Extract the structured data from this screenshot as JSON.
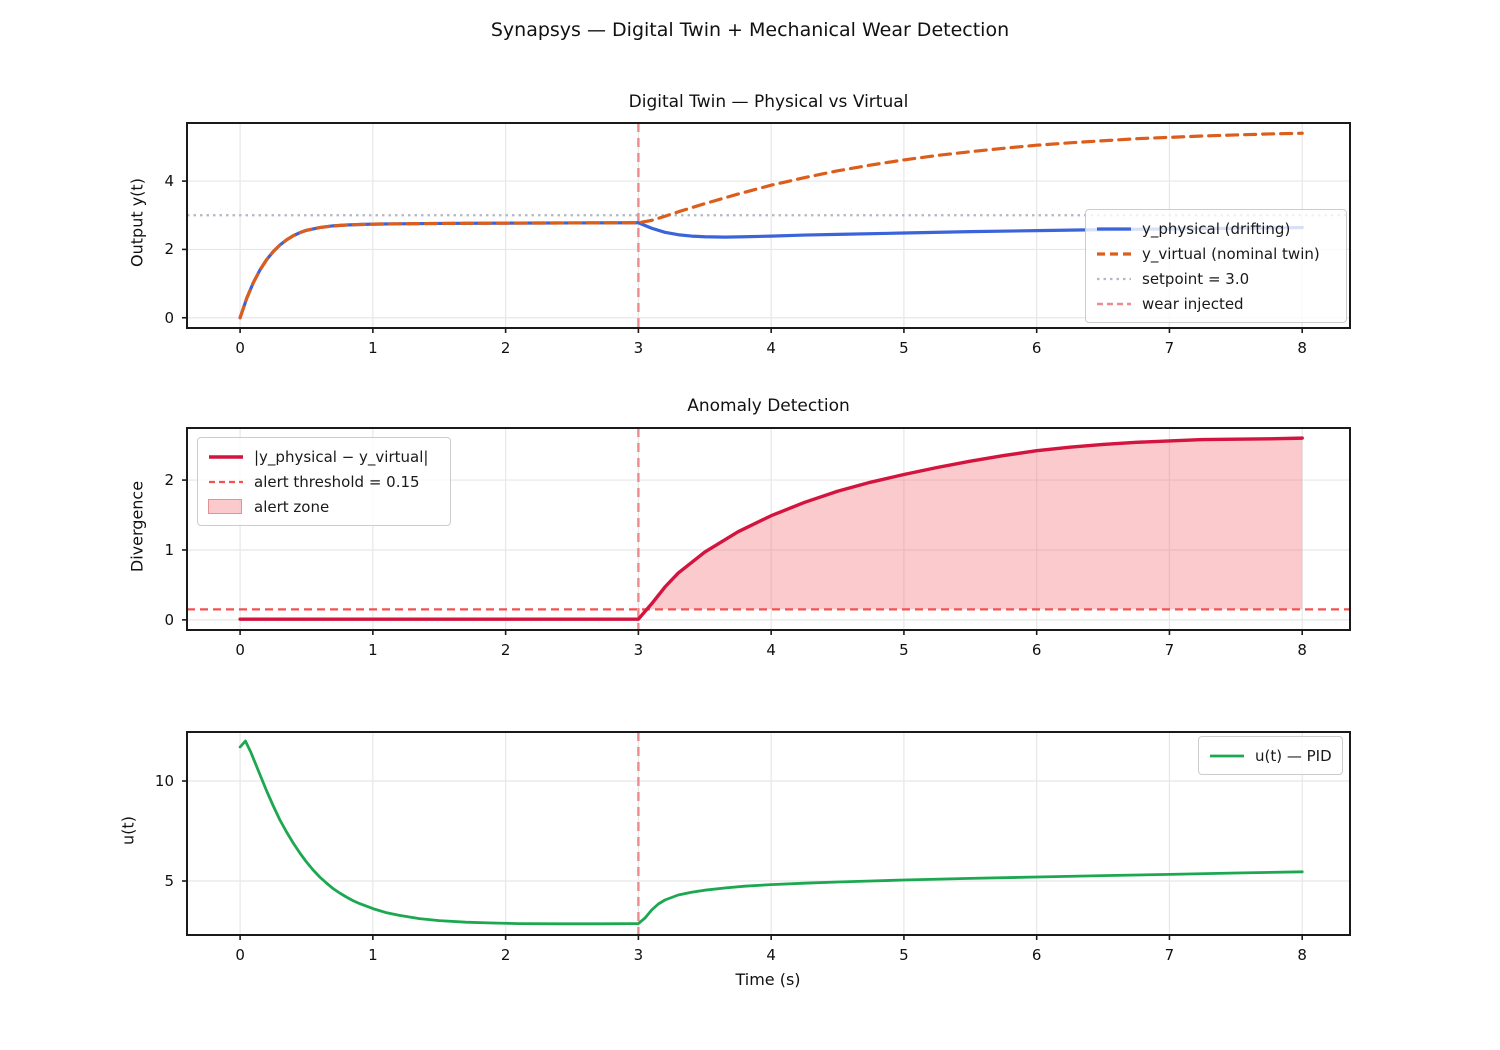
{
  "figure": {
    "suptitle": "Synapsys — Digital Twin + Mechanical Wear Detection",
    "xlabel": "Time (s)",
    "background": "#ffffff"
  },
  "style": {
    "grid": "#E7E7E7",
    "spine": "#1A1A1A",
    "text": "#111111",
    "legend_border": "#CCCCCC"
  },
  "chart_data": [
    {
      "type": "line",
      "title": "Digital Twin — Physical vs Virtual",
      "ylabel": "Output y(t)",
      "xlim": [
        -0.4,
        8.36
      ],
      "ylim": [
        -0.3,
        5.7
      ],
      "xticks": [
        0,
        1,
        2,
        3,
        4,
        5,
        6,
        7,
        8
      ],
      "yticks": [
        0,
        2,
        4
      ],
      "grid": true,
      "legend_position": "right",
      "series": [
        {
          "name": "y_physical (drifting)",
          "color": "#3B64DB",
          "lw": 3.2,
          "points": [
            [
              0,
              0
            ],
            [
              0.05,
              0.57
            ],
            [
              0.1,
              1.03
            ],
            [
              0.15,
              1.4
            ],
            [
              0.2,
              1.7
            ],
            [
              0.25,
              1.94
            ],
            [
              0.3,
              2.13
            ],
            [
              0.35,
              2.28
            ],
            [
              0.4,
              2.4
            ],
            [
              0.45,
              2.49
            ],
            [
              0.5,
              2.56
            ],
            [
              0.6,
              2.64
            ],
            [
              0.7,
              2.69
            ],
            [
              0.8,
              2.715
            ],
            [
              0.9,
              2.73
            ],
            [
              1,
              2.74
            ],
            [
              1.2,
              2.75
            ],
            [
              1.5,
              2.76
            ],
            [
              2,
              2.77
            ],
            [
              2.5,
              2.775
            ],
            [
              3,
              2.78
            ],
            [
              3.1,
              2.62
            ],
            [
              3.2,
              2.5
            ],
            [
              3.3,
              2.43
            ],
            [
              3.4,
              2.39
            ],
            [
              3.5,
              2.37
            ],
            [
              3.65,
              2.36
            ],
            [
              3.8,
              2.37
            ],
            [
              4,
              2.39
            ],
            [
              4.25,
              2.42
            ],
            [
              4.5,
              2.44
            ],
            [
              5,
              2.48
            ],
            [
              5.5,
              2.52
            ],
            [
              6,
              2.55
            ],
            [
              6.5,
              2.58
            ],
            [
              7,
              2.6
            ],
            [
              7.5,
              2.62
            ],
            [
              8,
              2.64
            ]
          ]
        },
        {
          "name": "y_virtual (nominal twin)",
          "color": "#DC5E1C",
          "lw": 3.2,
          "dash": "11 7",
          "swatch_dash": "8 5",
          "points": [
            [
              0,
              0
            ],
            [
              0.05,
              0.57
            ],
            [
              0.1,
              1.03
            ],
            [
              0.15,
              1.4
            ],
            [
              0.2,
              1.7
            ],
            [
              0.25,
              1.94
            ],
            [
              0.3,
              2.13
            ],
            [
              0.35,
              2.28
            ],
            [
              0.4,
              2.4
            ],
            [
              0.45,
              2.49
            ],
            [
              0.5,
              2.56
            ],
            [
              0.6,
              2.64
            ],
            [
              0.7,
              2.69
            ],
            [
              0.8,
              2.715
            ],
            [
              0.9,
              2.73
            ],
            [
              1,
              2.74
            ],
            [
              1.2,
              2.75
            ],
            [
              1.5,
              2.76
            ],
            [
              2,
              2.77
            ],
            [
              2.5,
              2.775
            ],
            [
              3,
              2.78
            ],
            [
              3.1,
              2.85
            ],
            [
              3.2,
              2.97
            ],
            [
              3.3,
              3.1
            ],
            [
              3.4,
              3.22
            ],
            [
              3.5,
              3.34
            ],
            [
              3.75,
              3.62
            ],
            [
              4,
              3.88
            ],
            [
              4.25,
              4.1
            ],
            [
              4.5,
              4.3
            ],
            [
              4.75,
              4.47
            ],
            [
              5,
              4.62
            ],
            [
              5.25,
              4.75
            ],
            [
              5.5,
              4.86
            ],
            [
              5.75,
              4.96
            ],
            [
              6,
              5.05
            ],
            [
              6.25,
              5.12
            ],
            [
              6.5,
              5.18
            ],
            [
              6.75,
              5.24
            ],
            [
              7,
              5.28
            ],
            [
              7.25,
              5.32
            ],
            [
              7.5,
              5.35
            ],
            [
              7.75,
              5.38
            ],
            [
              8,
              5.4
            ]
          ]
        }
      ],
      "ref_lines": [
        {
          "label": "setpoint = 3.0",
          "orient": "h",
          "value": 3.0,
          "color": "#B3B8C2",
          "lw": 2.2,
          "dash": "2.5 4",
          "swatch_dash": "2.5 4"
        },
        {
          "label": "wear injected",
          "orient": "v",
          "value": 3.0,
          "color": "#EC8C8C",
          "lw": 2.4,
          "dash": "9 6",
          "swatch_dash": "6 4"
        }
      ]
    },
    {
      "type": "line",
      "title": "Anomaly Detection",
      "ylabel": "Divergence",
      "xlim": [
        -0.4,
        8.36
      ],
      "ylim": [
        -0.145,
        2.745
      ],
      "xticks": [
        0,
        1,
        2,
        3,
        4,
        5,
        6,
        7,
        8
      ],
      "yticks": [
        0,
        1,
        2
      ],
      "grid": true,
      "legend_position": "upper left",
      "series": [
        {
          "name": "|y_physical − y_virtual|",
          "color": "#D2143E",
          "lw": 3.4,
          "points": [
            [
              0,
              0.01
            ],
            [
              3,
              0.01
            ],
            [
              3.1,
              0.23
            ],
            [
              3.2,
              0.47
            ],
            [
              3.3,
              0.67
            ],
            [
              3.4,
              0.82
            ],
            [
              3.5,
              0.97
            ],
            [
              3.75,
              1.26
            ],
            [
              4,
              1.49
            ],
            [
              4.25,
              1.68
            ],
            [
              4.5,
              1.84
            ],
            [
              4.75,
              1.97
            ],
            [
              5,
              2.08
            ],
            [
              5.25,
              2.18
            ],
            [
              5.5,
              2.27
            ],
            [
              5.75,
              2.35
            ],
            [
              6,
              2.42
            ],
            [
              6.25,
              2.47
            ],
            [
              6.5,
              2.51
            ],
            [
              6.75,
              2.54
            ],
            [
              7,
              2.56
            ],
            [
              7.25,
              2.58
            ],
            [
              7.5,
              2.585
            ],
            [
              7.75,
              2.59
            ],
            [
              8,
              2.6
            ]
          ]
        }
      ],
      "ref_lines": [
        {
          "label": "alert threshold = 0.15",
          "orient": "h",
          "value": 0.15,
          "color": "#F25252",
          "lw": 2.2,
          "dash": "8 5",
          "swatch_dash": "6 4"
        },
        {
          "label": "wear injected",
          "orient": "v",
          "value": 3.0,
          "color": "#EC8C8C",
          "lw": 2.4,
          "dash": "9 6",
          "swatch_dash": "6 4"
        }
      ],
      "fill": {
        "label": "alert zone",
        "color": "#F45E64",
        "opacity": 0.33,
        "border": "#E88F8F",
        "to": 0.15,
        "from_t": 3,
        "to_t": 8
      }
    },
    {
      "type": "line",
      "title": "",
      "ylabel": "u(t)",
      "xlim": [
        -0.4,
        8.36
      ],
      "ylim": [
        2.3,
        12.45
      ],
      "xticks": [
        0,
        1,
        2,
        3,
        4,
        5,
        6,
        7,
        8
      ],
      "yticks": [
        5,
        10
      ],
      "grid": true,
      "legend_position": "upper right",
      "series": [
        {
          "name": "u(t) — PID",
          "color": "#1CA850",
          "lw": 2.8,
          "points": [
            [
              0,
              11.7
            ],
            [
              0.04,
              12.0
            ],
            [
              0.08,
              11.45
            ],
            [
              0.12,
              10.8
            ],
            [
              0.16,
              10.15
            ],
            [
              0.2,
              9.5
            ],
            [
              0.25,
              8.75
            ],
            [
              0.3,
              8.05
            ],
            [
              0.35,
              7.45
            ],
            [
              0.4,
              6.9
            ],
            [
              0.45,
              6.4
            ],
            [
              0.5,
              5.95
            ],
            [
              0.55,
              5.55
            ],
            [
              0.6,
              5.2
            ],
            [
              0.65,
              4.9
            ],
            [
              0.7,
              4.62
            ],
            [
              0.75,
              4.4
            ],
            [
              0.8,
              4.2
            ],
            [
              0.85,
              4.02
            ],
            [
              0.9,
              3.87
            ],
            [
              1,
              3.62
            ],
            [
              1.1,
              3.42
            ],
            [
              1.2,
              3.28
            ],
            [
              1.35,
              3.12
            ],
            [
              1.5,
              3.02
            ],
            [
              1.7,
              2.94
            ],
            [
              1.9,
              2.9
            ],
            [
              2.1,
              2.87
            ],
            [
              2.4,
              2.86
            ],
            [
              2.7,
              2.86
            ],
            [
              3,
              2.87
            ],
            [
              3.05,
              3.15
            ],
            [
              3.1,
              3.55
            ],
            [
              3.15,
              3.85
            ],
            [
              3.2,
              4.05
            ],
            [
              3.3,
              4.3
            ],
            [
              3.4,
              4.44
            ],
            [
              3.5,
              4.54
            ],
            [
              3.65,
              4.65
            ],
            [
              3.8,
              4.74
            ],
            [
              4,
              4.82
            ],
            [
              4.25,
              4.89
            ],
            [
              4.5,
              4.95
            ],
            [
              4.75,
              5.0
            ],
            [
              5,
              5.05
            ],
            [
              5.5,
              5.13
            ],
            [
              6,
              5.2
            ],
            [
              6.5,
              5.27
            ],
            [
              7,
              5.33
            ],
            [
              7.5,
              5.4
            ],
            [
              8,
              5.46
            ]
          ]
        }
      ],
      "ref_lines": [
        {
          "label": "wear injected",
          "orient": "v",
          "value": 3.0,
          "color": "#EC8C8C",
          "lw": 2.4,
          "dash": "9 6",
          "swatch_dash": "6 4"
        }
      ]
    }
  ]
}
